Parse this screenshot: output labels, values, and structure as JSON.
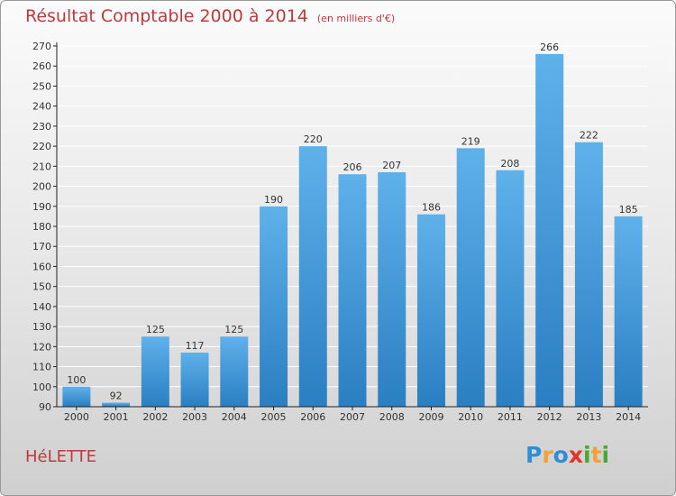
{
  "title": "Résultat Comptable 2000 à 2014",
  "unit_label": "(en milliers d'€)",
  "commune": "HéLETTE",
  "logo": {
    "text": "Proxiti",
    "letters": [
      {
        "ch": "P",
        "color": "#2f8fd6"
      },
      {
        "ch": "r",
        "color": "#f0a23a"
      },
      {
        "ch": "o",
        "color": "#2f8fd6"
      },
      {
        "ch": "x",
        "color": "#e2342c"
      },
      {
        "ch": "i",
        "color": "#4aa832"
      },
      {
        "ch": "t",
        "color": "#f0a23a"
      },
      {
        "ch": "i",
        "color": "#4aa832"
      }
    ]
  },
  "colors": {
    "title": "#c0393b",
    "bar_top": "#5fb1ea",
    "bar_bottom": "#2a7fc2",
    "grid": "#ffffff",
    "axis": "#222222"
  },
  "chart_data": {
    "type": "bar",
    "title": "Résultat Comptable 2000 à 2014",
    "xlabel": "",
    "ylabel": "",
    "grid": true,
    "ylim": [
      90,
      270
    ],
    "ytick_step": 10,
    "categories": [
      "2000",
      "2001",
      "2002",
      "2003",
      "2004",
      "2005",
      "2006",
      "2007",
      "2008",
      "2009",
      "2010",
      "2011",
      "2012",
      "2013",
      "2014"
    ],
    "values": [
      100,
      92,
      125,
      117,
      125,
      190,
      220,
      206,
      207,
      186,
      219,
      208,
      266,
      222,
      185
    ]
  }
}
